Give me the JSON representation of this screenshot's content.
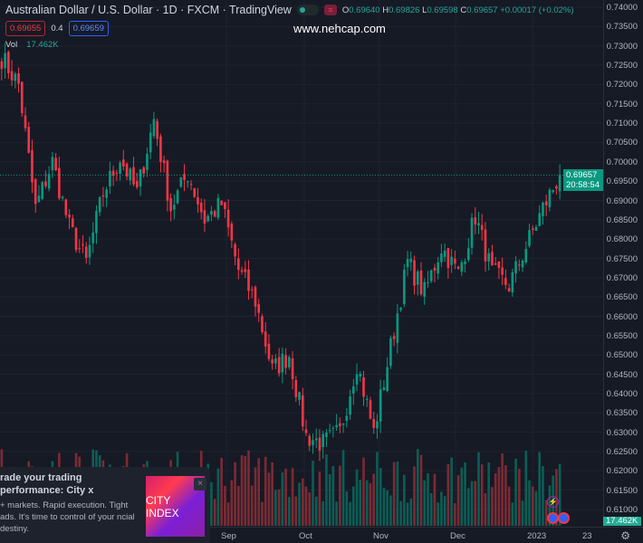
{
  "header": {
    "title": "Australian Dollar / U.S. Dollar · 1D · FXCM · TradingView",
    "o_label": "O",
    "o": "0.69640",
    "h_label": "H",
    "h": "0.69826",
    "l_label": "L",
    "l": "0.69598",
    "c_label": "C",
    "c": "0.69657",
    "change": "+0.00017 (+0.02%)",
    "sell": "0.69655",
    "spread": "0.4",
    "buy": "0.69659",
    "vol_label": "Vol",
    "vol": "17.462K"
  },
  "watermark": "www.nehcap.com",
  "price_axis": {
    "labels": [
      "0.74000",
      "0.73500",
      "0.73000",
      "0.72500",
      "0.72000",
      "0.71500",
      "0.71000",
      "0.70500",
      "0.70000",
      "0.69500",
      "0.69000",
      "0.68500",
      "0.68000",
      "0.67500",
      "0.67000",
      "0.66500",
      "0.66000",
      "0.65500",
      "0.65000",
      "0.64500",
      "0.64000",
      "0.63500",
      "0.63000",
      "0.62500",
      "0.62000",
      "0.61500",
      "0.61000"
    ],
    "current_price": "0.69657",
    "countdown": "20:58:54",
    "volume_label": "17.462K"
  },
  "time_axis": {
    "labels": [
      "Sep",
      "Oct",
      "Nov",
      "Dec",
      "2023",
      "23"
    ]
  },
  "ad": {
    "title": "rade your trading performance: City x",
    "body": "+ markets. Rapid execution. Tight ads. It's time to control of your ncial destiny.",
    "brand": "CITY INDEX",
    "close": "×"
  },
  "colors": {
    "up": "#089981",
    "down": "#f23645",
    "bg": "#161a25"
  },
  "chart_data": {
    "type": "candlestick",
    "symbol": "AUDUSD",
    "interval": "1D",
    "ylim": [
      0.61,
      0.74
    ],
    "weekly_closes": [
      0.727,
      0.72,
      0.688,
      0.7,
      0.683,
      0.674,
      0.692,
      0.701,
      0.692,
      0.711,
      0.688,
      0.697,
      0.685,
      0.689,
      0.672,
      0.664,
      0.646,
      0.65,
      0.629,
      0.627,
      0.63,
      0.648,
      0.63,
      0.652,
      0.674,
      0.666,
      0.678,
      0.671,
      0.686,
      0.671,
      0.668,
      0.678,
      0.688,
      0.6966
    ]
  }
}
